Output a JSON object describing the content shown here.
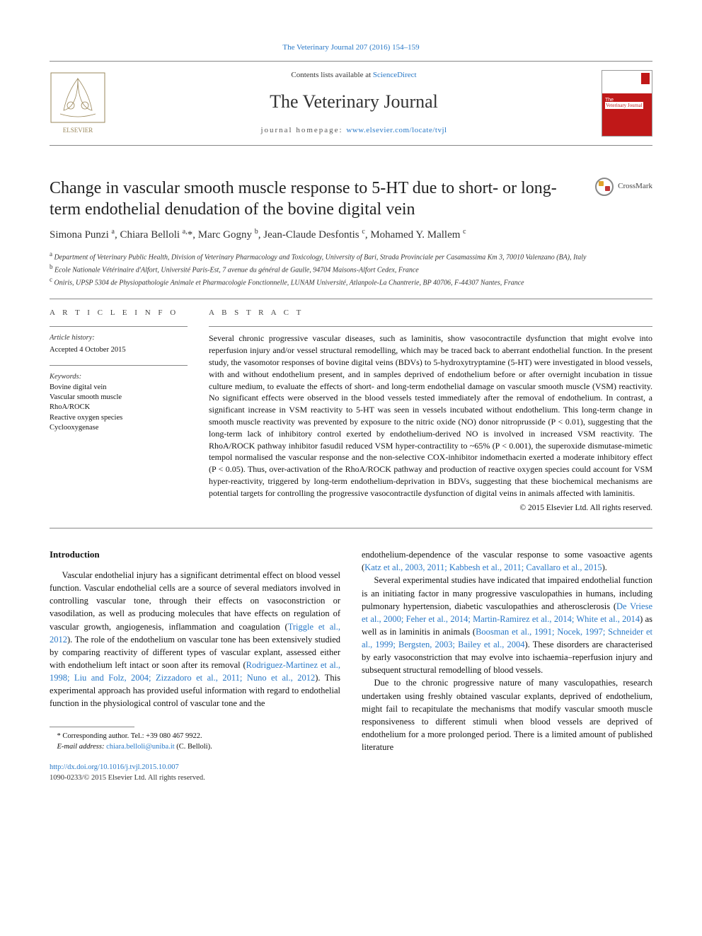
{
  "top_citation": "The Veterinary Journal 207 (2016) 154–159",
  "header": {
    "contents_prefix": "Contents lists available at ",
    "contents_link": "ScienceDirect",
    "journal_name": "The Veterinary Journal",
    "homepage_label": "journal homepage: ",
    "homepage_url": "www.elsevier.com/locate/tvjl",
    "cover_line1": "The",
    "cover_line2": "Veterinary Journal"
  },
  "crossmark_label": "CrossMark",
  "article": {
    "title": "Change in vascular smooth muscle response to 5-HT due to short- or long-term endothelial denudation of the bovine digital vein",
    "authors_html": "Simona Punzi <sup>a</sup>, Chiara Belloli <sup>a,</sup>*, Marc Gogny <sup>b</sup>, Jean-Claude Desfontis <sup>c</sup>, Mohamed Y. Mallem <sup>c</sup>",
    "affiliations": [
      {
        "marker": "a",
        "text": "Department of Veterinary Public Health, Division of Veterinary Pharmacology and Toxicology, University of Bari, Strada Provinciale per Casamassima Km 3, 70010 Valenzano (BA), Italy"
      },
      {
        "marker": "b",
        "text": "Ecole Nationale Vétérinaire d'Alfort, Université Paris-Est, 7 avenue du général de Gaulle, 94704 Maisons-Alfort Cedex, France"
      },
      {
        "marker": "c",
        "text": "Oniris, UPSP 5304 de Physiopathologie Animale et Pharmacologie Fonctionnelle, LUNAM Université, Atlanpole-La Chantrerie, BP 40706, F-44307 Nantes, France"
      }
    ]
  },
  "meta": {
    "info_heading": "A R T I C L E   I N F O",
    "history_head": "Article history:",
    "history_line": "Accepted 4 October 2015",
    "keywords_head": "Keywords:",
    "keywords": [
      "Bovine digital vein",
      "Vascular smooth muscle",
      "RhoA/ROCK",
      "Reactive oxygen species",
      "Cyclooxygenase"
    ]
  },
  "abstract": {
    "heading": "A B S T R A C T",
    "text": "Several chronic progressive vascular diseases, such as laminitis, show vasocontractile dysfunction that might evolve into reperfusion injury and/or vessel structural remodelling, which may be traced back to aberrant endothelial function. In the present study, the vasomotor responses of bovine digital veins (BDVs) to 5-hydroxytryptamine (5-HT) were investigated in blood vessels, with and without endothelium present, and in samples deprived of endothelium before or after overnight incubation in tissue culture medium, to evaluate the effects of short- and long-term endothelial damage on vascular smooth muscle (VSM) reactivity. No significant effects were observed in the blood vessels tested immediately after the removal of endothelium. In contrast, a significant increase in VSM reactivity to 5-HT was seen in vessels incubated without endothelium. This long-term change in smooth muscle reactivity was prevented by exposure to the nitric oxide (NO) donor nitroprusside (P < 0.01), suggesting that the long-term lack of inhibitory control exerted by endothelium-derived NO is involved in increased VSM reactivity. The RhoA/ROCK pathway inhibitor fasudil reduced VSM hyper-contractility to ~65% (P < 0.001), the superoxide dismutase-mimetic tempol normalised the vascular response and the non-selective COX-inhibitor indomethacin exerted a moderate inhibitory effect (P < 0.05). Thus, over-activation of the RhoA/ROCK pathway and production of reactive oxygen species could account for VSM hyper-reactivity, triggered by long-term endothelium-deprivation in BDVs, suggesting that these biochemical mechanisms are potential targets for controlling the progressive vasocontractile dysfunction of digital veins in animals affected with laminitis.",
    "copyright": "© 2015 Elsevier Ltd. All rights reserved."
  },
  "body": {
    "intro_heading": "Introduction",
    "left": {
      "p1_pre": "Vascular endothelial injury has a significant detrimental effect on blood vessel function. Vascular endothelial cells are a source of several mediators involved in controlling vascular tone, through their effects on vasoconstriction or vasodilation, as well as producing molecules that have effects on regulation of vascular growth, angiogenesis, inflammation and coagulation (",
      "p1_cite1": "Triggle et al., 2012",
      "p1_mid": "). The role of the endothelium on vascular tone has been extensively studied by comparing reactivity of different types of vascular explant, assessed either with endothelium left intact or soon after its removal (",
      "p1_cite2": "Rodriguez-Martinez et al., 1998; Liu and Folz, 2004; Zizzadoro et al., 2011; Nuno et al., 2012",
      "p1_post": "). This experimental approach has provided useful information with regard to endothelial function in the physiological control of vascular tone and the"
    },
    "right": {
      "p1_pre": "endothelium-dependence of the vascular response to some vasoactive agents (",
      "p1_cite": "Katz et al., 2003, 2011; Kabbesh et al., 2011; Cavallaro et al., 2015",
      "p1_post": ").",
      "p2_pre": "Several experimental studies have indicated that impaired endothelial function is an initiating factor in many progressive vasculopathies in humans, including pulmonary hypertension, diabetic vasculopathies and atherosclerosis (",
      "p2_cite1": "De Vriese et al., 2000; Feher et al., 2014; Martin-Ramirez et al., 2014; White et al., 2014",
      "p2_mid": ") as well as in laminitis in animals (",
      "p2_cite2": "Boosman et al., 1991; Nocek, 1997; Schneider et al., 1999; Bergsten, 2003; Bailey et al., 2004",
      "p2_post": "). These disorders are characterised by early vasoconstriction that may evolve into ischaemia–reperfusion injury and subsequent structural remodelling of blood vessels.",
      "p3": "Due to the chronic progressive nature of many vasculopathies, research undertaken using freshly obtained vascular explants, deprived of endothelium, might fail to recapitulate the mechanisms that modify vascular smooth muscle responsiveness to different stimuli when blood vessels are deprived of endothelium for a more prolonged period. There is a limited amount of published literature"
    }
  },
  "footnote": {
    "corr": "* Corresponding author. Tel.: +39 080 467 9922.",
    "email_label": "E-mail address: ",
    "email": "chiara.belloli@uniba.it",
    "email_who": " (C. Belloli)."
  },
  "footer": {
    "doi": "http://dx.doi.org/10.1016/j.tvjl.2015.10.007",
    "issn_line": "1090-0233/© 2015 Elsevier Ltd. All rights reserved."
  },
  "colors": {
    "link": "#2878c7",
    "text": "#111",
    "rule": "#888",
    "cover_red": "#c01818"
  }
}
